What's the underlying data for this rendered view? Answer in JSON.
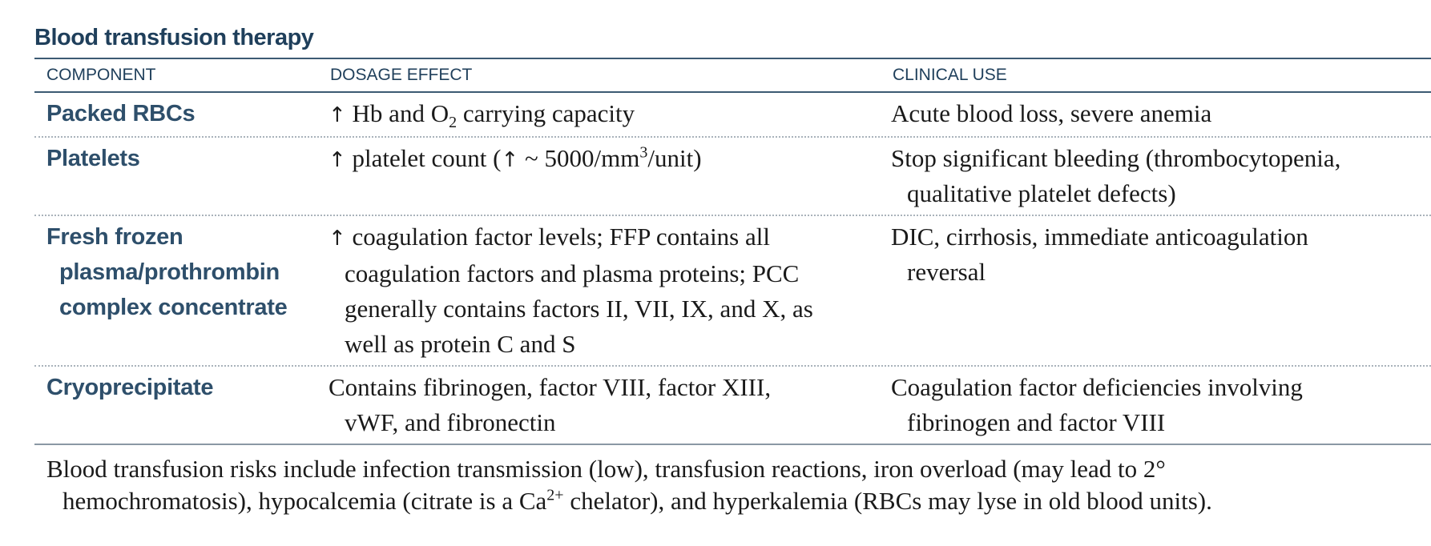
{
  "title": "Blood transfusion therapy",
  "headers": {
    "component": "COMPONENT",
    "dosage": "DOSAGE EFFECT",
    "clinical": "CLINICAL USE"
  },
  "rows": [
    {
      "component_lines": [
        "Packed RBCs"
      ],
      "dosage": {
        "arrow": "↑",
        "a": " Hb and O",
        "sub": "2",
        "b": " carrying capacity"
      },
      "clinical_lines": [
        "Acute blood loss, severe anemia"
      ]
    },
    {
      "component_lines": [
        "Platelets"
      ],
      "dosage": {
        "arrow": "↑",
        "a": " platelet count (",
        "arrow2": "↑",
        "b": " ~ 5000/mm",
        "sup": "3",
        "c": "/unit)"
      },
      "clinical_lines": [
        "Stop significant bleeding (thrombocytopenia,",
        "qualitative platelet defects)"
      ]
    },
    {
      "component_lines": [
        "Fresh frozen",
        "plasma/prothrombin",
        "complex concentrate"
      ],
      "dosage": {
        "arrow": "↑",
        "line1": " coagulation factor levels; FFP contains all",
        "line2": "coagulation factors and plasma proteins; PCC",
        "line3": "generally contains factors II, VII, IX, and X, as",
        "line4": "well as protein C and S"
      },
      "clinical_lines": [
        "DIC, cirrhosis, immediate anticoagulation",
        "reversal"
      ]
    },
    {
      "component_lines": [
        "Cryoprecipitate"
      ],
      "dosage": {
        "line1": "Contains fibrinogen, factor VIII, factor XIII,",
        "line2": "vWF, and fibronectin"
      },
      "clinical_lines": [
        "Coagulation factor deficiencies involving",
        "fibrinogen and factor VIII"
      ]
    }
  ],
  "note": {
    "line1": "Blood transfusion risks include infection transmission (low), transfusion reactions, iron overload (may lead to 2°",
    "line2a": "hemochromatosis), hypocalcemia (citrate is a Ca",
    "line2sup": "2+",
    "line2b": " chelator), and hyperkalemia (RBCs may lyse in old blood units)."
  }
}
